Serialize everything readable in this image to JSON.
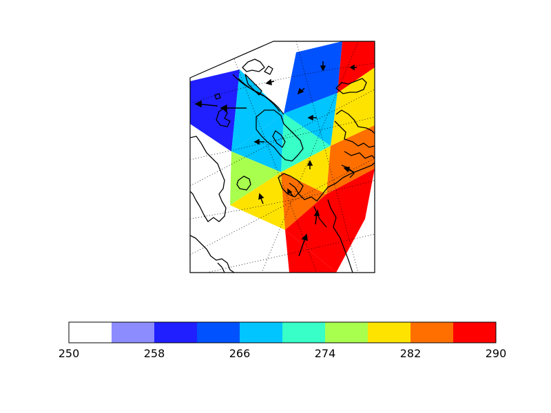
{
  "chart_data": {
    "type": "heatmap",
    "title": "",
    "colorbar": {
      "vmin": 250,
      "vmax": 290,
      "levels": [
        250,
        254,
        258,
        262,
        266,
        270,
        274,
        278,
        282,
        286,
        290
      ],
      "colors": [
        "#ffffff",
        "#8c8cff",
        "#1f1fff",
        "#0052ff",
        "#00c5ff",
        "#38ffc8",
        "#a8ff4e",
        "#ffe300",
        "#ff6f00",
        "#ff0000"
      ],
      "tick_values": [
        250,
        258,
        266,
        274,
        282,
        290
      ],
      "tick_labels": [
        "250",
        "258",
        "266",
        "274",
        "282",
        "290"
      ]
    },
    "map": {
      "projection": "polar stereographic",
      "coastlines": true,
      "graticule": "dotted",
      "wind_vectors": true
    }
  }
}
